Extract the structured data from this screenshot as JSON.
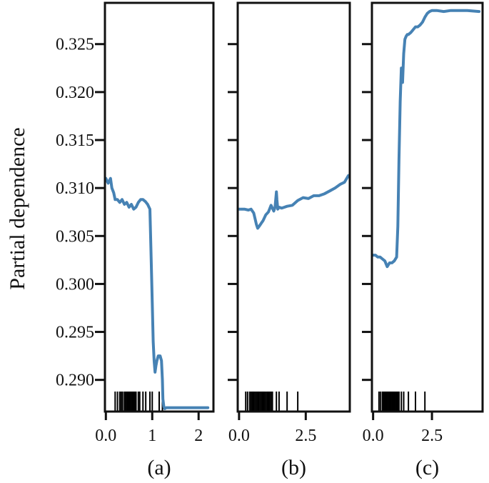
{
  "chart_data": {
    "type": "line",
    "ylabel": "Partial dependence",
    "ylim": [
      0.2867,
      0.3293
    ],
    "yticks": [
      0.29,
      0.295,
      0.3,
      0.305,
      0.31,
      0.315,
      0.32,
      0.325
    ],
    "ytick_labels": [
      "0.290",
      "0.295",
      "0.300",
      "0.305",
      "0.310",
      "0.315",
      "0.320",
      "0.325"
    ],
    "line_color": "#4682B4",
    "rug_color": "#000000",
    "panels": [
      {
        "label": "(a)",
        "xlim": [
          -0.02,
          2.32
        ],
        "xticks": [
          0,
          1,
          2
        ],
        "xtick_labels": [
          "0.0",
          "1",
          "2"
        ],
        "x": [
          0.0,
          0.05,
          0.1,
          0.13,
          0.17,
          0.2,
          0.25,
          0.3,
          0.35,
          0.4,
          0.45,
          0.5,
          0.55,
          0.6,
          0.65,
          0.7,
          0.75,
          0.8,
          0.85,
          0.9,
          0.95,
          0.97,
          1.0,
          1.02,
          1.04,
          1.06,
          1.08,
          1.1,
          1.13,
          1.17,
          1.2,
          1.22,
          1.23,
          1.25,
          1.27,
          1.3,
          1.5,
          1.8,
          2.2
        ],
        "y": [
          0.311,
          0.3105,
          0.311,
          0.31,
          0.3095,
          0.3088,
          0.3088,
          0.3085,
          0.3088,
          0.3083,
          0.3085,
          0.308,
          0.3083,
          0.3078,
          0.308,
          0.3085,
          0.3088,
          0.3088,
          0.3086,
          0.3083,
          0.3078,
          0.304,
          0.298,
          0.294,
          0.292,
          0.2908,
          0.2915,
          0.292,
          0.2925,
          0.2925,
          0.292,
          0.29,
          0.288,
          0.2872,
          0.287,
          0.2871,
          0.2871,
          0.2871,
          0.2871
        ],
        "rug": [
          0.2,
          0.25,
          0.3,
          0.33,
          0.36,
          0.4,
          0.42,
          0.45,
          0.48,
          0.5,
          0.52,
          0.55,
          0.58,
          0.6,
          0.62,
          0.65,
          0.7,
          0.73,
          0.8,
          0.86,
          0.95,
          1.0,
          1.15,
          1.22
        ]
      },
      {
        "label": "(b)",
        "xlim": [
          -0.05,
          4.15
        ],
        "xticks": [
          0,
          2.5
        ],
        "xtick_labels": [
          "0.0",
          "2.5"
        ],
        "x": [
          0.0,
          0.2,
          0.35,
          0.45,
          0.55,
          0.6,
          0.65,
          0.7,
          0.75,
          0.8,
          0.85,
          0.9,
          1.0,
          1.1,
          1.2,
          1.3,
          1.35,
          1.4,
          1.42,
          1.45,
          1.5,
          1.6,
          1.7,
          1.8,
          2.0,
          2.2,
          2.4,
          2.6,
          2.8,
          3.0,
          3.2,
          3.4,
          3.6,
          3.8,
          3.95,
          4.1
        ],
        "y": [
          0.3078,
          0.3078,
          0.3077,
          0.3078,
          0.3074,
          0.3068,
          0.3062,
          0.3058,
          0.306,
          0.3062,
          0.3064,
          0.3066,
          0.3072,
          0.3075,
          0.3082,
          0.3076,
          0.308,
          0.3096,
          0.3088,
          0.3078,
          0.308,
          0.3079,
          0.308,
          0.3081,
          0.3082,
          0.3087,
          0.309,
          0.3089,
          0.3092,
          0.3092,
          0.3094,
          0.3097,
          0.31,
          0.3104,
          0.3106,
          0.3113
        ],
        "rug": [
          0.25,
          0.32,
          0.4,
          0.45,
          0.5,
          0.55,
          0.6,
          0.65,
          0.7,
          0.75,
          0.8,
          0.85,
          0.9,
          0.95,
          1.0,
          1.05,
          1.1,
          1.15,
          1.2,
          1.25,
          1.4,
          1.5,
          1.8,
          2.2
        ]
      },
      {
        "label": "(c)",
        "xlim": [
          -0.05,
          4.65
        ],
        "xticks": [
          0,
          2.5
        ],
        "xtick_labels": [
          "0.0",
          "2.5"
        ],
        "x": [
          0.0,
          0.1,
          0.2,
          0.3,
          0.4,
          0.5,
          0.6,
          0.7,
          0.8,
          0.9,
          1.0,
          1.05,
          1.1,
          1.15,
          1.2,
          1.25,
          1.3,
          1.35,
          1.4,
          1.45,
          1.5,
          1.6,
          1.7,
          1.8,
          1.9,
          2.0,
          2.1,
          2.2,
          2.3,
          2.4,
          2.5,
          2.7,
          3.0,
          3.3,
          3.6,
          4.0,
          4.5
        ],
        "y": [
          0.303,
          0.303,
          0.3028,
          0.3028,
          0.3026,
          0.3024,
          0.3018,
          0.3022,
          0.3022,
          0.3024,
          0.3028,
          0.306,
          0.313,
          0.319,
          0.3225,
          0.321,
          0.324,
          0.3255,
          0.3258,
          0.326,
          0.326,
          0.3262,
          0.3265,
          0.3268,
          0.3268,
          0.327,
          0.3273,
          0.3278,
          0.3282,
          0.3284,
          0.3285,
          0.3285,
          0.3284,
          0.3285,
          0.3285,
          0.3285,
          0.3284
        ],
        "rug": [
          0.25,
          0.32,
          0.4,
          0.45,
          0.5,
          0.55,
          0.6,
          0.65,
          0.7,
          0.75,
          0.8,
          0.85,
          0.9,
          0.95,
          1.0,
          1.05,
          1.1,
          1.2,
          1.3,
          1.5,
          1.8,
          2.2
        ]
      }
    ]
  }
}
